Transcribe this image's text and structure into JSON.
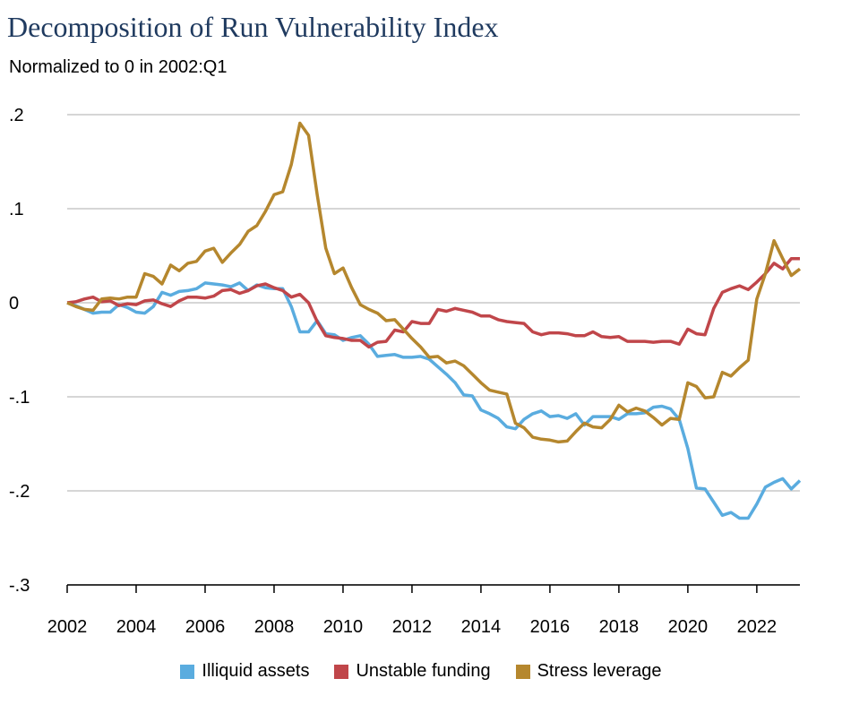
{
  "title": "Decomposition of Run Vulnerability Index",
  "subtitle": "Normalized to 0 in 2002:Q1",
  "chart_data": {
    "type": "line",
    "title": "Decomposition of Run Vulnerability Index",
    "subtitle": "Normalized to 0 in 2002:Q1",
    "xlabel": "",
    "ylabel": "",
    "xlim": [
      2002.0,
      2023.25
    ],
    "ylim": [
      -0.3,
      0.2
    ],
    "xticks": [
      "2002",
      "2004",
      "2006",
      "2008",
      "2010",
      "2012",
      "2014",
      "2016",
      "2018",
      "2020",
      "2022"
    ],
    "yticks": [
      ".2",
      ".1",
      "0",
      "-.1",
      "-.2",
      "-.3"
    ],
    "ytick_values": [
      0.2,
      0.1,
      0.0,
      -0.1,
      -0.2,
      -0.3
    ],
    "grid": "horizontal",
    "legend_position": "bottom",
    "series": [
      {
        "name": "Illiquid assets",
        "color": "#5aacdf",
        "points": [
          [
            2002.0,
            0.0
          ],
          [
            2002.25,
            -0.003
          ],
          [
            2002.5,
            -0.007
          ],
          [
            2002.75,
            -0.011
          ],
          [
            2003.0,
            -0.01
          ],
          [
            2003.25,
            -0.01
          ],
          [
            2003.5,
            -0.002
          ],
          [
            2003.75,
            -0.005
          ],
          [
            2004.0,
            -0.01
          ],
          [
            2004.25,
            -0.011
          ],
          [
            2004.5,
            -0.004
          ],
          [
            2004.75,
            0.011
          ],
          [
            2005.0,
            0.008
          ],
          [
            2005.25,
            0.012
          ],
          [
            2005.5,
            0.013
          ],
          [
            2005.75,
            0.015
          ],
          [
            2006.0,
            0.021
          ],
          [
            2006.25,
            0.02
          ],
          [
            2006.5,
            0.019
          ],
          [
            2006.75,
            0.017
          ],
          [
            2007.0,
            0.021
          ],
          [
            2007.25,
            0.013
          ],
          [
            2007.5,
            0.019
          ],
          [
            2007.75,
            0.016
          ],
          [
            2008.0,
            0.015
          ],
          [
            2008.25,
            0.015
          ],
          [
            2008.5,
            -0.004
          ],
          [
            2008.75,
            -0.031
          ],
          [
            2009.0,
            -0.031
          ],
          [
            2009.25,
            -0.019
          ],
          [
            2009.5,
            -0.033
          ],
          [
            2009.75,
            -0.034
          ],
          [
            2010.0,
            -0.04
          ],
          [
            2010.25,
            -0.037
          ],
          [
            2010.5,
            -0.035
          ],
          [
            2010.75,
            -0.044
          ],
          [
            2011.0,
            -0.057
          ],
          [
            2011.25,
            -0.056
          ],
          [
            2011.5,
            -0.055
          ],
          [
            2011.75,
            -0.058
          ],
          [
            2012.0,
            -0.058
          ],
          [
            2012.25,
            -0.057
          ],
          [
            2012.5,
            -0.06
          ],
          [
            2012.75,
            -0.068
          ],
          [
            2013.0,
            -0.076
          ],
          [
            2013.25,
            -0.085
          ],
          [
            2013.5,
            -0.098
          ],
          [
            2013.75,
            -0.099
          ],
          [
            2014.0,
            -0.114
          ],
          [
            2014.25,
            -0.118
          ],
          [
            2014.5,
            -0.123
          ],
          [
            2014.75,
            -0.132
          ],
          [
            2015.0,
            -0.134
          ],
          [
            2015.25,
            -0.124
          ],
          [
            2015.5,
            -0.118
          ],
          [
            2015.75,
            -0.115
          ],
          [
            2016.0,
            -0.121
          ],
          [
            2016.25,
            -0.12
          ],
          [
            2016.5,
            -0.123
          ],
          [
            2016.75,
            -0.118
          ],
          [
            2017.0,
            -0.13
          ],
          [
            2017.25,
            -0.121
          ],
          [
            2017.5,
            -0.121
          ],
          [
            2017.75,
            -0.121
          ],
          [
            2018.0,
            -0.124
          ],
          [
            2018.25,
            -0.118
          ],
          [
            2018.5,
            -0.118
          ],
          [
            2018.75,
            -0.117
          ],
          [
            2019.0,
            -0.111
          ],
          [
            2019.25,
            -0.11
          ],
          [
            2019.5,
            -0.113
          ],
          [
            2019.75,
            -0.124
          ],
          [
            2020.0,
            -0.155
          ],
          [
            2020.25,
            -0.197
          ],
          [
            2020.5,
            -0.198
          ],
          [
            2020.75,
            -0.212
          ],
          [
            2021.0,
            -0.226
          ],
          [
            2021.25,
            -0.223
          ],
          [
            2021.5,
            -0.229
          ],
          [
            2021.75,
            -0.229
          ],
          [
            2022.0,
            -0.214
          ],
          [
            2022.25,
            -0.196
          ],
          [
            2022.5,
            -0.191
          ],
          [
            2022.75,
            -0.187
          ],
          [
            2023.0,
            -0.198
          ],
          [
            2023.25,
            -0.189
          ]
        ]
      },
      {
        "name": "Unstable funding",
        "color": "#c0464a",
        "points": [
          [
            2002.0,
            0.0
          ],
          [
            2002.25,
            0.001
          ],
          [
            2002.5,
            0.004
          ],
          [
            2002.75,
            0.006
          ],
          [
            2003.0,
            0.001
          ],
          [
            2003.25,
            0.002
          ],
          [
            2003.5,
            -0.003
          ],
          [
            2003.75,
            -0.001
          ],
          [
            2004.0,
            -0.002
          ],
          [
            2004.25,
            0.002
          ],
          [
            2004.5,
            0.003
          ],
          [
            2004.75,
            -0.001
          ],
          [
            2005.0,
            -0.004
          ],
          [
            2005.25,
            0.002
          ],
          [
            2005.5,
            0.006
          ],
          [
            2005.75,
            0.006
          ],
          [
            2006.0,
            0.005
          ],
          [
            2006.25,
            0.007
          ],
          [
            2006.5,
            0.013
          ],
          [
            2006.75,
            0.014
          ],
          [
            2007.0,
            0.01
          ],
          [
            2007.25,
            0.013
          ],
          [
            2007.5,
            0.018
          ],
          [
            2007.75,
            0.02
          ],
          [
            2008.0,
            0.016
          ],
          [
            2008.25,
            0.013
          ],
          [
            2008.5,
            0.006
          ],
          [
            2008.75,
            0.009
          ],
          [
            2009.0,
            0.0
          ],
          [
            2009.25,
            -0.02
          ],
          [
            2009.5,
            -0.035
          ],
          [
            2009.75,
            -0.037
          ],
          [
            2010.0,
            -0.038
          ],
          [
            2010.25,
            -0.04
          ],
          [
            2010.5,
            -0.04
          ],
          [
            2010.75,
            -0.047
          ],
          [
            2011.0,
            -0.042
          ],
          [
            2011.25,
            -0.041
          ],
          [
            2011.5,
            -0.029
          ],
          [
            2011.75,
            -0.031
          ],
          [
            2012.0,
            -0.02
          ],
          [
            2012.25,
            -0.022
          ],
          [
            2012.5,
            -0.022
          ],
          [
            2012.75,
            -0.007
          ],
          [
            2013.0,
            -0.009
          ],
          [
            2013.25,
            -0.006
          ],
          [
            2013.5,
            -0.008
          ],
          [
            2013.75,
            -0.01
          ],
          [
            2014.0,
            -0.014
          ],
          [
            2014.25,
            -0.014
          ],
          [
            2014.5,
            -0.018
          ],
          [
            2014.75,
            -0.02
          ],
          [
            2015.0,
            -0.021
          ],
          [
            2015.25,
            -0.022
          ],
          [
            2015.5,
            -0.031
          ],
          [
            2015.75,
            -0.034
          ],
          [
            2016.0,
            -0.032
          ],
          [
            2016.25,
            -0.032
          ],
          [
            2016.5,
            -0.033
          ],
          [
            2016.75,
            -0.035
          ],
          [
            2017.0,
            -0.035
          ],
          [
            2017.25,
            -0.031
          ],
          [
            2017.5,
            -0.036
          ],
          [
            2017.75,
            -0.037
          ],
          [
            2018.0,
            -0.036
          ],
          [
            2018.25,
            -0.041
          ],
          [
            2018.5,
            -0.041
          ],
          [
            2018.75,
            -0.041
          ],
          [
            2019.0,
            -0.042
          ],
          [
            2019.25,
            -0.041
          ],
          [
            2019.5,
            -0.041
          ],
          [
            2019.75,
            -0.044
          ],
          [
            2020.0,
            -0.028
          ],
          [
            2020.25,
            -0.033
          ],
          [
            2020.5,
            -0.034
          ],
          [
            2020.75,
            -0.006
          ],
          [
            2021.0,
            0.011
          ],
          [
            2021.25,
            0.015
          ],
          [
            2021.5,
            0.018
          ],
          [
            2021.75,
            0.014
          ],
          [
            2022.0,
            0.022
          ],
          [
            2022.25,
            0.031
          ],
          [
            2022.5,
            0.042
          ],
          [
            2022.75,
            0.036
          ],
          [
            2023.0,
            0.047
          ],
          [
            2023.25,
            0.047
          ]
        ]
      },
      {
        "name": "Stress leverage",
        "color": "#b5872e",
        "points": [
          [
            2002.0,
            0.0
          ],
          [
            2002.25,
            -0.004
          ],
          [
            2002.5,
            -0.007
          ],
          [
            2002.75,
            -0.008
          ],
          [
            2003.0,
            0.004
          ],
          [
            2003.25,
            0.005
          ],
          [
            2003.5,
            0.004
          ],
          [
            2003.75,
            0.006
          ],
          [
            2004.0,
            0.006
          ],
          [
            2004.25,
            0.031
          ],
          [
            2004.5,
            0.028
          ],
          [
            2004.75,
            0.02
          ],
          [
            2005.0,
            0.04
          ],
          [
            2005.25,
            0.034
          ],
          [
            2005.5,
            0.042
          ],
          [
            2005.75,
            0.044
          ],
          [
            2006.0,
            0.055
          ],
          [
            2006.25,
            0.058
          ],
          [
            2006.5,
            0.043
          ],
          [
            2006.75,
            0.053
          ],
          [
            2007.0,
            0.062
          ],
          [
            2007.25,
            0.076
          ],
          [
            2007.5,
            0.082
          ],
          [
            2007.75,
            0.097
          ],
          [
            2008.0,
            0.115
          ],
          [
            2008.25,
            0.118
          ],
          [
            2008.5,
            0.147
          ],
          [
            2008.75,
            0.191
          ],
          [
            2009.0,
            0.178
          ],
          [
            2009.25,
            0.115
          ],
          [
            2009.5,
            0.058
          ],
          [
            2009.75,
            0.031
          ],
          [
            2010.0,
            0.037
          ],
          [
            2010.25,
            0.016
          ],
          [
            2010.5,
            -0.002
          ],
          [
            2010.75,
            -0.007
          ],
          [
            2011.0,
            -0.011
          ],
          [
            2011.25,
            -0.019
          ],
          [
            2011.5,
            -0.018
          ],
          [
            2011.75,
            -0.028
          ],
          [
            2012.0,
            -0.038
          ],
          [
            2012.25,
            -0.047
          ],
          [
            2012.5,
            -0.058
          ],
          [
            2012.75,
            -0.057
          ],
          [
            2013.0,
            -0.064
          ],
          [
            2013.25,
            -0.062
          ],
          [
            2013.5,
            -0.067
          ],
          [
            2013.75,
            -0.076
          ],
          [
            2014.0,
            -0.085
          ],
          [
            2014.25,
            -0.093
          ],
          [
            2014.5,
            -0.095
          ],
          [
            2014.75,
            -0.097
          ],
          [
            2015.0,
            -0.128
          ],
          [
            2015.25,
            -0.133
          ],
          [
            2015.5,
            -0.143
          ],
          [
            2015.75,
            -0.145
          ],
          [
            2016.0,
            -0.146
          ],
          [
            2016.25,
            -0.148
          ],
          [
            2016.5,
            -0.147
          ],
          [
            2016.75,
            -0.137
          ],
          [
            2017.0,
            -0.128
          ],
          [
            2017.25,
            -0.132
          ],
          [
            2017.5,
            -0.133
          ],
          [
            2017.75,
            -0.124
          ],
          [
            2018.0,
            -0.109
          ],
          [
            2018.25,
            -0.116
          ],
          [
            2018.5,
            -0.112
          ],
          [
            2018.75,
            -0.115
          ],
          [
            2019.0,
            -0.122
          ],
          [
            2019.25,
            -0.13
          ],
          [
            2019.5,
            -0.123
          ],
          [
            2019.75,
            -0.124
          ],
          [
            2020.0,
            -0.085
          ],
          [
            2020.25,
            -0.089
          ],
          [
            2020.5,
            -0.101
          ],
          [
            2020.75,
            -0.1
          ],
          [
            2021.0,
            -0.074
          ],
          [
            2021.25,
            -0.078
          ],
          [
            2021.5,
            -0.069
          ],
          [
            2021.75,
            -0.061
          ],
          [
            2022.0,
            0.004
          ],
          [
            2022.25,
            0.031
          ],
          [
            2022.5,
            0.066
          ],
          [
            2022.75,
            0.047
          ],
          [
            2023.0,
            0.029
          ],
          [
            2023.25,
            0.036
          ]
        ]
      }
    ]
  }
}
